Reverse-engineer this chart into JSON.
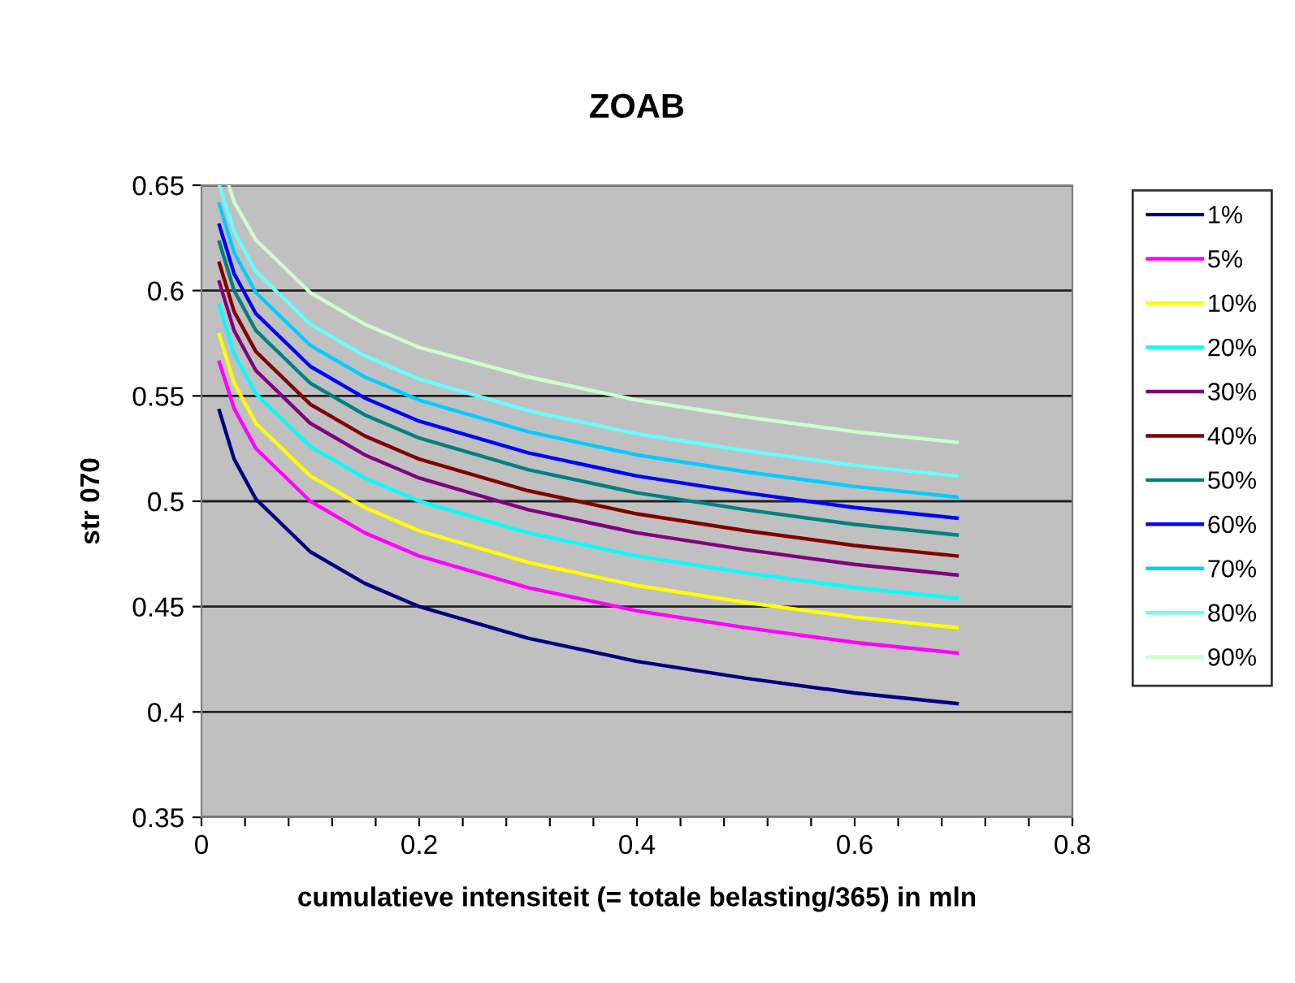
{
  "chart_data": {
    "type": "line",
    "title": "ZOAB",
    "xlabel": "cumulatieve intensiteit (= totale belasting/365) in mln",
    "ylabel": "str 070",
    "x": [
      0.0164,
      0.03,
      0.05,
      0.1,
      0.15,
      0.2,
      0.3,
      0.4,
      0.5,
      0.6,
      0.694
    ],
    "series": [
      {
        "name": "1%",
        "color": "#000080",
        "values": [
          0.543,
          0.52,
          0.501,
          0.476,
          0.461,
          0.45,
          0.435,
          0.424,
          0.416,
          0.409,
          0.404
        ]
      },
      {
        "name": "5%",
        "color": "#ff00ff",
        "values": [
          0.566,
          0.544,
          0.525,
          0.5,
          0.485,
          0.474,
          0.459,
          0.448,
          0.44,
          0.433,
          0.428
        ]
      },
      {
        "name": "10%",
        "color": "#ffff00",
        "values": [
          0.579,
          0.556,
          0.537,
          0.512,
          0.497,
          0.486,
          0.471,
          0.46,
          0.452,
          0.445,
          0.44
        ]
      },
      {
        "name": "20%",
        "color": "#00ffff",
        "values": [
          0.593,
          0.57,
          0.551,
          0.526,
          0.511,
          0.5,
          0.485,
          0.474,
          0.466,
          0.459,
          0.454
        ]
      },
      {
        "name": "30%",
        "color": "#800080",
        "values": [
          0.604,
          0.581,
          0.562,
          0.537,
          0.522,
          0.511,
          0.496,
          0.485,
          0.477,
          0.47,
          0.465
        ]
      },
      {
        "name": "40%",
        "color": "#800000",
        "values": [
          0.613,
          0.59,
          0.571,
          0.546,
          0.531,
          0.52,
          0.505,
          0.494,
          0.486,
          0.479,
          0.474
        ]
      },
      {
        "name": "50%",
        "color": "#008080",
        "values": [
          0.623,
          0.6,
          0.581,
          0.556,
          0.541,
          0.53,
          0.515,
          0.504,
          0.496,
          0.489,
          0.484
        ]
      },
      {
        "name": "60%",
        "color": "#0000ff",
        "values": [
          0.631,
          0.608,
          0.589,
          0.564,
          0.549,
          0.538,
          0.523,
          0.512,
          0.504,
          0.497,
          0.492
        ]
      },
      {
        "name": "70%",
        "color": "#00ccff",
        "values": [
          0.641,
          0.618,
          0.599,
          0.574,
          0.559,
          0.548,
          0.533,
          0.522,
          0.514,
          0.507,
          0.502
        ]
      },
      {
        "name": "80%",
        "color": "#66ffff",
        "values": [
          0.65,
          0.628,
          0.609,
          0.584,
          0.569,
          0.558,
          0.543,
          0.532,
          0.524,
          0.517,
          0.512
        ]
      },
      {
        "name": "90%",
        "color": "#ccffcc",
        "x": [
          0.025,
          0.03,
          0.05,
          0.1,
          0.15,
          0.2,
          0.3,
          0.4,
          0.5,
          0.6,
          0.694
        ],
        "values": [
          0.65,
          0.642,
          0.624,
          0.599,
          0.584,
          0.573,
          0.559,
          0.548,
          0.54,
          0.533,
          0.528
        ]
      }
    ],
    "xlim": [
      0,
      0.8
    ],
    "ylim": [
      0.35,
      0.65
    ],
    "xticks": [
      0,
      {
        "value": 0.04,
        "label": null
      },
      {
        "value": 0.08,
        "label": null
      },
      {
        "value": 0.12,
        "label": null
      },
      {
        "value": 0.16,
        "label": null
      },
      0.2,
      {
        "value": 0.24,
        "label": null
      },
      {
        "value": 0.28,
        "label": null
      },
      {
        "value": 0.32,
        "label": null
      },
      {
        "value": 0.36,
        "label": null
      },
      0.4,
      {
        "value": 0.44,
        "label": null
      },
      {
        "value": 0.48,
        "label": null
      },
      {
        "value": 0.52,
        "label": null
      },
      {
        "value": 0.56,
        "label": null
      },
      0.6,
      {
        "value": 0.64,
        "label": null
      },
      {
        "value": 0.68,
        "label": null
      },
      {
        "value": 0.72,
        "label": null
      },
      {
        "value": 0.76,
        "label": null
      },
      0.8
    ],
    "yticks": [
      0.35,
      0.4,
      0.45,
      0.5,
      0.55,
      0.6,
      0.65
    ],
    "grid": "y",
    "legend": "right",
    "marker": "none",
    "line_style": "solid"
  }
}
